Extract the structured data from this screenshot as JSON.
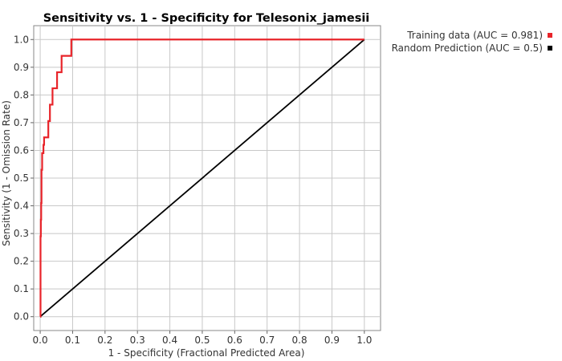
{
  "chart_data": {
    "type": "line",
    "title": "Sensitivity vs. 1 - Specificity for Telesonix_jamesii",
    "xlabel": "1 - Specificity  (Fractional Predicted Area)",
    "ylabel": "Sensitivity  (1 - Omission Rate)",
    "xlim": [
      -0.02,
      1.05
    ],
    "ylim": [
      -0.05,
      1.05
    ],
    "xticks": [
      "0.0",
      "0.1",
      "0.2",
      "0.3",
      "0.4",
      "0.5",
      "0.6",
      "0.7",
      "0.8",
      "0.9",
      "1.0"
    ],
    "yticks": [
      "0.0",
      "0.1",
      "0.2",
      "0.3",
      "0.4",
      "0.5",
      "0.6",
      "0.7",
      "0.8",
      "0.9",
      "1.0"
    ],
    "grid": true,
    "legend_position": "top-right",
    "series": [
      {
        "name": "Training data (AUC = 0.981)",
        "color": "#e8242a",
        "x": [
          0.0,
          0.001,
          0.001,
          0.002,
          0.002,
          0.003,
          0.003,
          0.004,
          0.004,
          0.006,
          0.006,
          0.01,
          0.01,
          0.012,
          0.012,
          0.025,
          0.025,
          0.03,
          0.03,
          0.038,
          0.038,
          0.052,
          0.052,
          0.066,
          0.066,
          0.08,
          0.08,
          0.096,
          0.096,
          1.0
        ],
        "y": [
          0.0,
          0.0,
          0.29,
          0.29,
          0.35,
          0.35,
          0.41,
          0.41,
          0.53,
          0.53,
          0.59,
          0.59,
          0.62,
          0.62,
          0.647,
          0.647,
          0.706,
          0.706,
          0.765,
          0.765,
          0.824,
          0.824,
          0.882,
          0.882,
          0.941,
          0.941,
          0.941,
          0.941,
          1.0,
          1.0
        ]
      },
      {
        "name": "Random Prediction (AUC = 0.5)",
        "color": "#000000",
        "x": [
          0.0,
          1.0
        ],
        "y": [
          0.0,
          1.0
        ]
      }
    ]
  }
}
